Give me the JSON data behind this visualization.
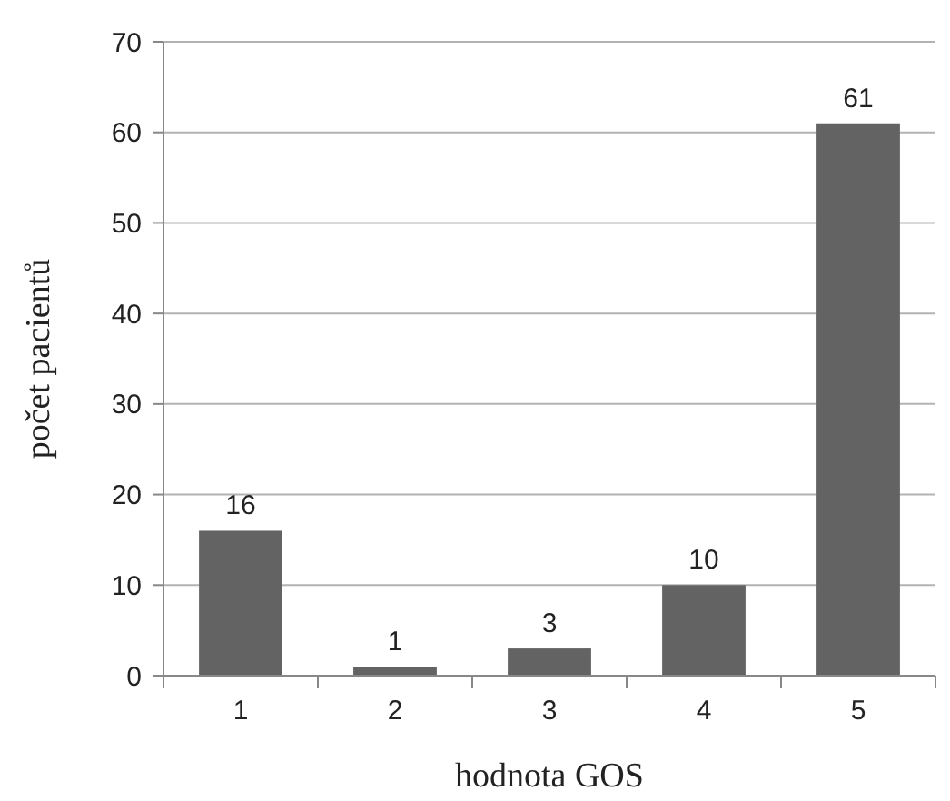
{
  "chart_data": {
    "type": "bar",
    "xlabel": "hodnota GOS",
    "ylabel": "počet pacientů",
    "categories": [
      "1",
      "2",
      "3",
      "4",
      "5"
    ],
    "values": [
      16,
      1,
      3,
      10,
      61
    ],
    "color": "#636363",
    "ylim": [
      0,
      70
    ],
    "yticks": [
      0,
      10,
      20,
      30,
      40,
      50,
      60,
      70
    ],
    "grid": "y",
    "data_labels": true
  }
}
